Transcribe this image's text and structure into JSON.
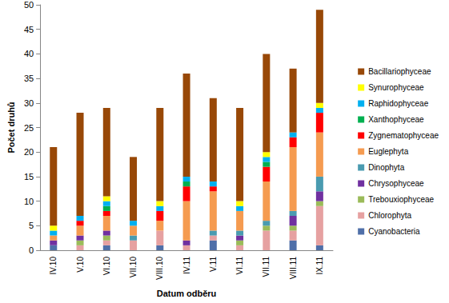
{
  "chart_data": {
    "type": "bar",
    "stacked": true,
    "grid": false,
    "legend": "right",
    "x_label": "Datum odběru",
    "y_label": "Počet druhů",
    "categories": [
      "IV.10",
      "V.10",
      "VI.10",
      "VII.10",
      "VIII.10",
      "IV.11",
      "V.11",
      "VI.11",
      "VII.11",
      "VIII.11",
      "IX.11"
    ],
    "ylim": [
      0,
      50
    ],
    "yticks": [
      0,
      5,
      10,
      15,
      20,
      25,
      30,
      35,
      40,
      45,
      50
    ],
    "series": [
      {
        "name": "Cyanobacteria",
        "color": "#4f6fa8",
        "values": [
          1,
          0,
          1,
          0,
          1,
          0,
          2,
          0,
          0,
          2,
          1
        ]
      },
      {
        "name": "Chlorophyta",
        "color": "#e6a1a1",
        "values": [
          0,
          1,
          1,
          2,
          3,
          1,
          1,
          1,
          4,
          2,
          8
        ]
      },
      {
        "name": "Trebouxiophyceae",
        "color": "#9bbb59",
        "values": [
          0,
          1,
          1,
          0,
          0,
          0,
          0,
          1,
          1,
          1,
          1
        ]
      },
      {
        "name": "Chrysophyceae",
        "color": "#7030a0",
        "values": [
          1,
          1,
          1,
          0,
          0,
          1,
          0,
          1,
          0,
          2,
          2
        ]
      },
      {
        "name": "Dinophyta",
        "color": "#4a9bb0",
        "values": [
          0,
          0,
          0,
          1,
          0,
          0,
          1,
          1,
          1,
          1,
          3
        ]
      },
      {
        "name": "Euglephyta",
        "color": "#f59b50",
        "values": [
          1,
          2,
          3,
          2,
          2,
          8,
          8,
          4,
          8,
          13,
          9
        ]
      },
      {
        "name": "Zygnematophyceae",
        "color": "#ff0000",
        "values": [
          0,
          1,
          1,
          0,
          2,
          3,
          1,
          0,
          3,
          2,
          4
        ]
      },
      {
        "name": "Xanthophyceae",
        "color": "#00b050",
        "values": [
          0,
          0,
          1,
          0,
          0,
          1,
          0,
          0,
          1,
          0,
          0
        ]
      },
      {
        "name": "Raphidophyceae",
        "color": "#00b0f0",
        "values": [
          1,
          1,
          1,
          1,
          1,
          1,
          1,
          1,
          1,
          1,
          1
        ]
      },
      {
        "name": "Synurophyceae",
        "color": "#ffff00",
        "values": [
          1,
          0,
          1,
          0,
          1,
          0,
          0,
          1,
          1,
          0,
          1
        ]
      },
      {
        "name": "Bacillariophyceae",
        "color": "#984807",
        "values": [
          16,
          21,
          18,
          13,
          19,
          21,
          17,
          19,
          20,
          13,
          19
        ]
      }
    ]
  }
}
